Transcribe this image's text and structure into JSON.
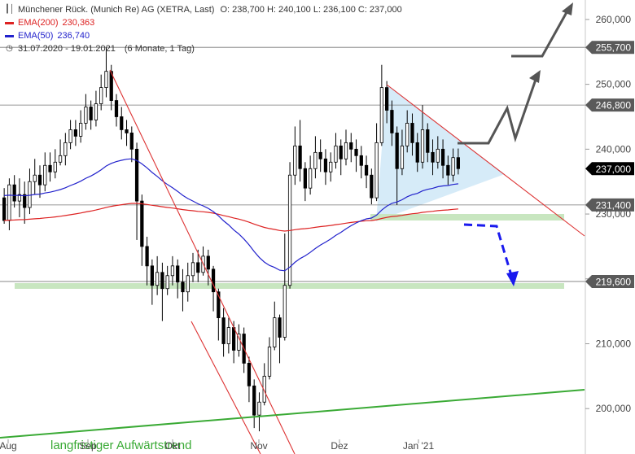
{
  "header": {
    "title": "Münchener Rück. (Munich Re) AG (XETRA, Last)",
    "ohlc": "O: 238,700  H: 240,100  L: 236,100  C: 237,000",
    "ema200_label": "EMA(200)",
    "ema200_value": "230,363",
    "ema50_label": "EMA(50)",
    "ema50_value": "236,740",
    "period": "31.07.2020 - 19.01.2021",
    "period_detail": "(6 Monate, 1 Tag)"
  },
  "colors": {
    "ema200": "#dd2222",
    "ema50": "#2222cc",
    "trend": "#3aaa35",
    "support_band": "#c8e6c0",
    "triangle_fill": "#cfe7f7",
    "forecast_gray": "#555555",
    "forecast_blue": "#1a1aee",
    "candle": "#000000",
    "last_price_box": "#000000"
  },
  "chart_data": {
    "type": "candlestick",
    "x_axis": {
      "labels": [
        "Aug",
        "Sep",
        "Okt",
        "Nov",
        "Dez",
        "Jan '21"
      ]
    },
    "y_axis": {
      "ticks": [
        "200,000",
        "210,000",
        "220,000",
        "230,000",
        "240,000",
        "250,000",
        "260,000"
      ],
      "range": [
        193,
        263
      ],
      "side": "right"
    },
    "price_levels": [
      {
        "value": 255.7,
        "label": "255,700",
        "style": "gray"
      },
      {
        "value": 246.8,
        "label": "246,800",
        "style": "gray"
      },
      {
        "value": 237.0,
        "label": "237,000",
        "style": "last"
      },
      {
        "value": 231.4,
        "label": "231,400",
        "style": "gray"
      },
      {
        "value": 219.6,
        "label": "219,600",
        "style": "gray"
      }
    ],
    "annotation": "langfristiger Aufwärtstrend",
    "candles": [
      [
        232.5,
        229.0,
        234.0,
        228.5
      ],
      [
        229.0,
        234.5,
        235.5,
        227.5
      ],
      [
        234.5,
        232.0,
        236.0,
        231.0
      ],
      [
        232.0,
        233.0,
        235.5,
        229.5
      ],
      [
        233.0,
        231.0,
        235.0,
        228.5
      ],
      [
        231.0,
        235.0,
        237.0,
        230.0
      ],
      [
        235.0,
        236.0,
        238.5,
        233.0
      ],
      [
        236.0,
        234.5,
        237.5,
        232.5
      ],
      [
        234.5,
        237.5,
        239.5,
        233.5
      ],
      [
        237.5,
        236.5,
        239.5,
        235.0
      ],
      [
        236.5,
        238.0,
        240.0,
        235.5
      ],
      [
        238.0,
        239.0,
        241.5,
        237.5
      ],
      [
        239.0,
        241.0,
        242.5,
        237.5
      ],
      [
        241.0,
        243.0,
        244.5,
        240.0
      ],
      [
        243.0,
        242.0,
        244.5,
        240.5
      ],
      [
        242.0,
        244.0,
        246.0,
        241.0
      ],
      [
        244.0,
        246.5,
        248.5,
        243.0
      ],
      [
        246.5,
        244.5,
        247.5,
        243.0
      ],
      [
        244.5,
        247.0,
        249.0,
        243.5
      ],
      [
        247.0,
        249.5,
        251.5,
        246.0
      ],
      [
        249.5,
        252.0,
        255.7,
        248.0
      ],
      [
        252.0,
        247.5,
        253.0,
        246.0
      ],
      [
        247.5,
        245.0,
        248.5,
        243.5
      ],
      [
        245.0,
        243.0,
        246.5,
        241.5
      ],
      [
        243.0,
        242.5,
        244.5,
        240.5
      ],
      [
        242.5,
        240.0,
        243.5,
        238.0
      ],
      [
        240.0,
        232.0,
        241.0,
        226.0
      ],
      [
        232.0,
        225.0,
        233.0,
        222.0
      ],
      [
        225.0,
        222.0,
        226.5,
        219.0
      ],
      [
        222.0,
        219.0,
        223.0,
        216.0
      ],
      [
        219.0,
        221.0,
        223.5,
        217.5
      ],
      [
        221.0,
        218.5,
        222.5,
        213.5
      ],
      [
        218.5,
        220.5,
        222.0,
        217.5
      ],
      [
        220.5,
        222.0,
        223.5,
        219.0
      ],
      [
        222.0,
        219.5,
        223.0,
        217.0
      ],
      [
        219.5,
        218.0,
        221.5,
        215.0
      ],
      [
        218.0,
        220.5,
        222.5,
        216.5
      ],
      [
        220.5,
        222.5,
        224.0,
        219.5
      ],
      [
        222.5,
        221.0,
        224.5,
        219.5
      ],
      [
        221.0,
        223.5,
        225.0,
        220.5
      ],
      [
        223.5,
        221.5,
        224.5,
        219.0
      ],
      [
        221.5,
        218.0,
        222.0,
        215.0
      ],
      [
        218.0,
        214.0,
        218.5,
        210.5
      ],
      [
        214.0,
        210.0,
        215.5,
        208.0
      ],
      [
        210.0,
        212.5,
        214.0,
        208.5
      ],
      [
        212.5,
        209.0,
        213.5,
        207.0
      ],
      [
        209.0,
        211.5,
        213.0,
        208.0
      ],
      [
        211.5,
        207.0,
        212.5,
        205.5
      ],
      [
        207.0,
        203.5,
        208.0,
        201.0
      ],
      [
        203.5,
        199.0,
        204.5,
        197.0
      ],
      [
        199.0,
        201.0,
        202.5,
        196.5
      ],
      [
        201.0,
        205.0,
        207.0,
        200.5
      ],
      [
        205.0,
        209.5,
        211.0,
        204.5
      ],
      [
        209.5,
        214.0,
        216.5,
        209.0
      ],
      [
        214.0,
        211.0,
        214.5,
        207.0
      ],
      [
        211.0,
        219.0,
        227.0,
        210.5
      ],
      [
        219.0,
        236.0,
        238.0,
        218.5
      ],
      [
        236.0,
        240.5,
        243.5,
        234.5
      ],
      [
        240.5,
        237.0,
        244.5,
        235.0
      ],
      [
        237.0,
        234.0,
        238.0,
        232.0
      ],
      [
        234.0,
        237.0,
        239.0,
        233.0
      ],
      [
        237.0,
        239.5,
        242.0,
        235.5
      ],
      [
        239.5,
        238.5,
        241.5,
        236.5
      ],
      [
        238.5,
        236.5,
        240.0,
        234.5
      ],
      [
        236.5,
        238.0,
        239.5,
        235.0
      ],
      [
        238.0,
        240.5,
        242.5,
        237.0
      ],
      [
        240.5,
        238.5,
        241.5,
        236.0
      ],
      [
        238.5,
        241.0,
        243.0,
        237.5
      ],
      [
        241.0,
        240.0,
        242.5,
        238.0
      ],
      [
        240.0,
        239.0,
        241.5,
        236.5
      ],
      [
        239.0,
        237.5,
        240.5,
        235.5
      ],
      [
        237.5,
        236.0,
        239.0,
        234.0
      ],
      [
        236.0,
        232.5,
        237.0,
        231.5
      ],
      [
        232.5,
        241.0,
        244.0,
        232.0
      ],
      [
        241.0,
        249.5,
        253.0,
        240.5
      ],
      [
        249.5,
        246.0,
        250.5,
        244.0
      ],
      [
        246.0,
        242.5,
        247.5,
        240.5
      ],
      [
        242.5,
        237.0,
        243.5,
        231.4
      ],
      [
        237.0,
        240.5,
        243.0,
        236.0
      ],
      [
        240.5,
        244.0,
        246.0,
        239.5
      ],
      [
        244.0,
        241.0,
        245.5,
        239.0
      ],
      [
        241.0,
        238.0,
        242.5,
        236.5
      ],
      [
        238.0,
        243.0,
        246.8,
        237.0
      ],
      [
        243.0,
        239.5,
        244.0,
        238.0
      ],
      [
        239.5,
        238.0,
        241.5,
        236.0
      ],
      [
        238.0,
        240.0,
        242.0,
        237.0
      ],
      [
        240.0,
        237.5,
        241.5,
        235.5
      ],
      [
        237.5,
        236.0,
        239.0,
        234.5
      ],
      [
        236.0,
        238.7,
        240.1,
        235.0
      ],
      [
        238.7,
        237.0,
        240.1,
        236.1
      ]
    ]
  }
}
